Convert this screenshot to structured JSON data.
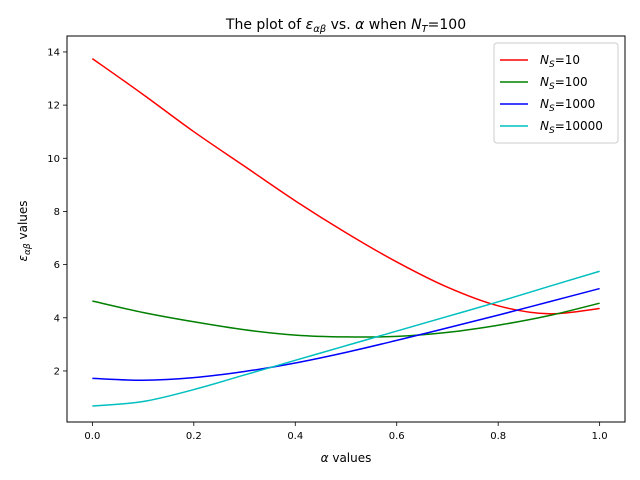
{
  "chart_data": {
    "type": "line",
    "title": {
      "pre": "The plot of ",
      "eps": "ε",
      "eps_sub": "αβ",
      "mid": " vs. ",
      "alpha": "α",
      "when": " when ",
      "N": "N",
      "N_sub": "T",
      "post": "=100"
    },
    "xlabel": {
      "alpha": "α",
      "rest": " values"
    },
    "ylabel": {
      "eps": "ε",
      "eps_sub": "αβ",
      "rest": " values"
    },
    "xlim": [
      -0.05,
      1.05
    ],
    "ylim": [
      0.08,
      14.6
    ],
    "xticks": [
      0.0,
      0.2,
      0.4,
      0.6,
      0.8,
      1.0
    ],
    "xtick_labels": [
      "0.0",
      "0.2",
      "0.4",
      "0.6",
      "0.8",
      "1.0"
    ],
    "yticks": [
      2,
      4,
      6,
      8,
      10,
      12,
      14
    ],
    "ytick_labels": [
      "2",
      "4",
      "6",
      "8",
      "10",
      "12",
      "14"
    ],
    "grid": false,
    "legend_position": "top-right",
    "x": [
      0.0,
      0.1,
      0.2,
      0.3,
      0.4,
      0.5,
      0.6,
      0.7,
      0.8,
      0.9,
      1.0
    ],
    "series": [
      {
        "name": {
          "N": "N",
          "sub": "S",
          "rest": "=10"
        },
        "color": "#ff0000",
        "values": [
          13.75,
          12.4,
          11.0,
          9.7,
          8.4,
          7.2,
          6.1,
          5.15,
          4.45,
          4.15,
          4.35
        ]
      },
      {
        "name": {
          "N": "N",
          "sub": "S",
          "rest": "=100"
        },
        "color": "#008000",
        "values": [
          4.63,
          4.2,
          3.85,
          3.55,
          3.35,
          3.28,
          3.3,
          3.45,
          3.72,
          4.08,
          4.55
        ]
      },
      {
        "name": {
          "N": "N",
          "sub": "S",
          "rest": "=1000"
        },
        "color": "#0000ff",
        "values": [
          1.72,
          1.65,
          1.75,
          1.98,
          2.3,
          2.7,
          3.15,
          3.62,
          4.1,
          4.6,
          5.1
        ]
      },
      {
        "name": {
          "N": "N",
          "sub": "S",
          "rest": "=10000"
        },
        "color": "#00bfbf",
        "values": [
          0.68,
          0.85,
          1.3,
          1.85,
          2.4,
          2.95,
          3.5,
          4.05,
          4.6,
          5.18,
          5.75
        ]
      }
    ]
  }
}
